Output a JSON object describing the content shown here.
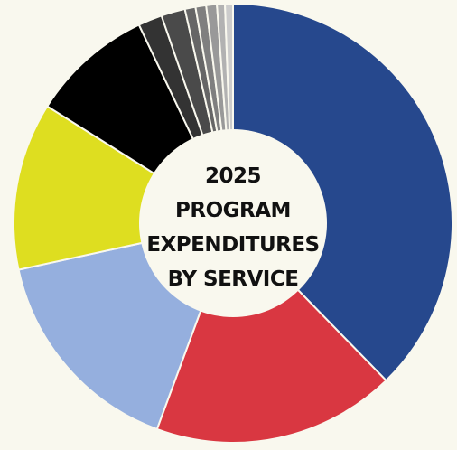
{
  "chart_data": {
    "type": "pie",
    "title_lines": [
      "2025",
      "PROGRAM",
      "EXPENDITURES",
      "BY SERVICE"
    ],
    "legend": "none",
    "values": [
      38.5,
      18.3,
      16.3,
      12.6,
      9.2,
      1.8,
      1.8,
      0.8,
      0.8,
      0.8,
      0.6,
      0.6
    ],
    "colors": [
      "#26488d",
      "#d93741",
      "#95afde",
      "#dede20",
      "#000000",
      "#333333",
      "#4a4a4a",
      "#666666",
      "#7f7f7f",
      "#999999",
      "#b2b2b2",
      "#cccccc"
    ]
  }
}
